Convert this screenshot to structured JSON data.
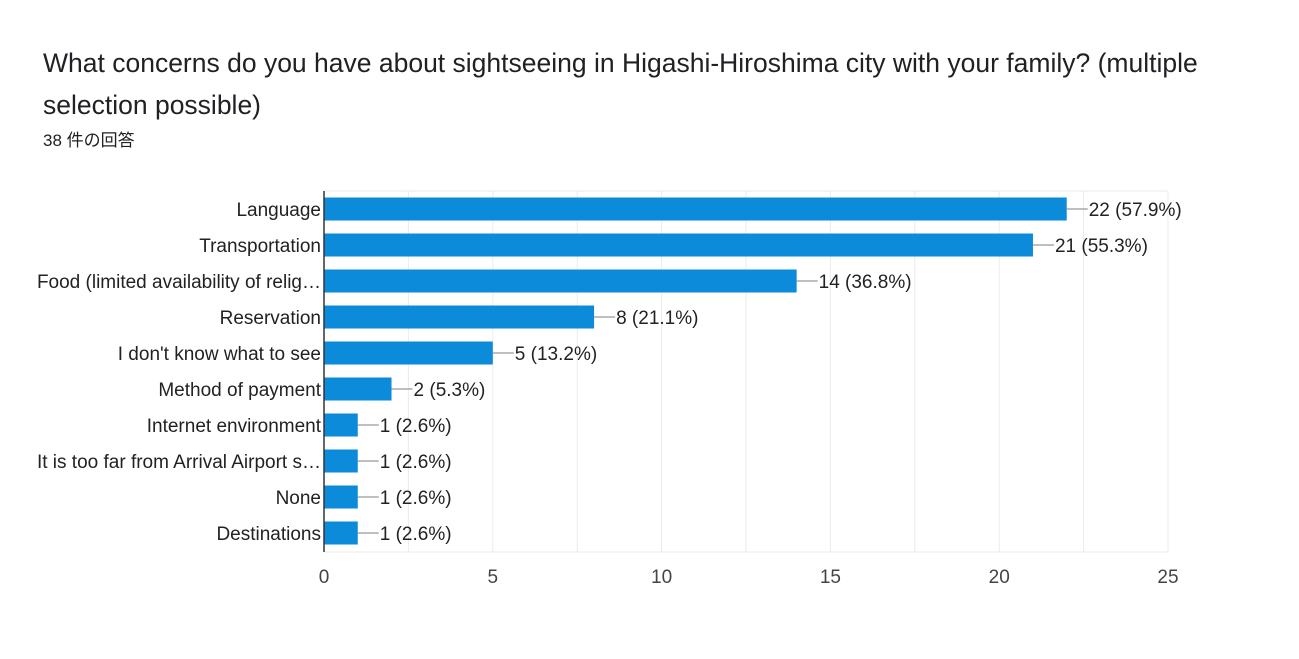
{
  "question": {
    "title": "What concerns do you have about sightseeing in Higashi-Hiroshima city with your family? (multiple selection possible)",
    "response_count": "38 件の回答"
  },
  "colors": {
    "bar": "#0b8bd9",
    "gridline": "#ebebeb",
    "axis": "#333333",
    "leader": "#999999"
  },
  "chart_data": {
    "type": "bar",
    "orientation": "horizontal",
    "title": "",
    "xlabel": "",
    "ylabel": "",
    "xlim": [
      0,
      25
    ],
    "x_ticks": [
      0,
      5,
      10,
      15,
      20,
      25
    ],
    "grid": true,
    "categories": [
      "Language",
      "Transportation",
      "Food (limited availability of relig…",
      "Reservation",
      "I don't know what to see",
      "Method of payment",
      "Internet environment",
      "It is too far from Arrival Airport s…",
      "None",
      "Destinations"
    ],
    "values": [
      22,
      21,
      14,
      8,
      5,
      2,
      1,
      1,
      1,
      1
    ],
    "data_labels": [
      "22 (57.9%)",
      "21 (55.3%)",
      "14 (36.8%)",
      "8 (21.1%)",
      "5 (13.2%)",
      "2 (5.3%)",
      "1 (2.6%)",
      "1 (2.6%)",
      "1 (2.6%)",
      "1 (2.6%)"
    ]
  }
}
